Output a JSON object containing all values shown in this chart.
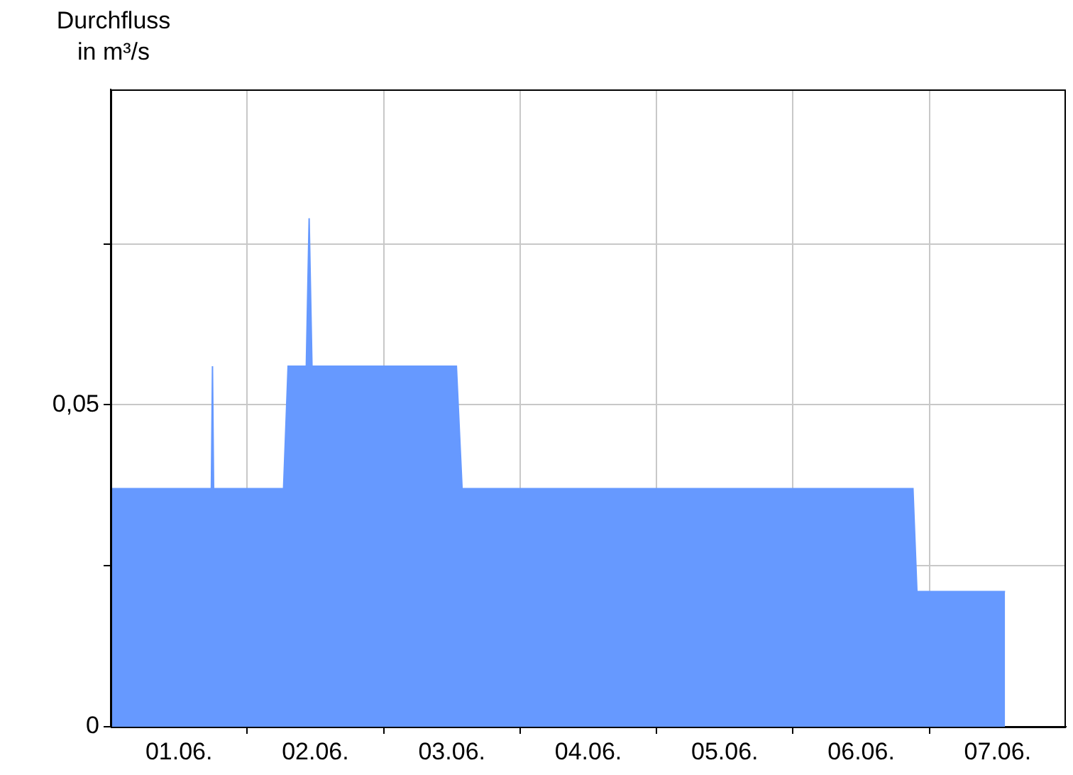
{
  "chart_data": {
    "type": "area",
    "ylabel": "Durchfluss in m³/s",
    "x": [
      "--06-01T00:00",
      "--06-01T17:42",
      "--06-01T17:54",
      "--06-01T18:06",
      "--06-02T06:24",
      "--06-02T07:12",
      "--06-02T10:24",
      "--06-02T10:54",
      "--06-02T11:24",
      "--06-03T12:48",
      "--06-03T13:48",
      "--06-06T21:06",
      "--06-06T21:48",
      "--06-07T13:18"
    ],
    "series": [
      {
        "color": "#6699ff",
        "values": [
          0.037,
          0.037,
          0.056,
          0.037,
          0.037,
          0.056,
          0.056,
          0.079,
          0.056,
          0.056,
          0.037,
          0.037,
          0.021,
          0.021
        ]
      }
    ],
    "xlim": [
      "--06-01",
      "--06-08"
    ],
    "xticks": [
      {
        "value": "--06-01T12:00",
        "label": "01.06."
      },
      {
        "value": "--06-02",
        "label": null
      },
      {
        "value": "--06-02T12:00",
        "label": "02.06."
      },
      {
        "value": "--06-03",
        "label": null
      },
      {
        "value": "--06-03T12:00",
        "label": "03.06."
      },
      {
        "value": "--06-04",
        "label": null
      },
      {
        "value": "--06-04T12:00",
        "label": "04.06."
      },
      {
        "value": "--06-05",
        "label": null
      },
      {
        "value": "--06-05T12:00",
        "label": "05.06."
      },
      {
        "value": "--06-06",
        "label": null
      },
      {
        "value": "--06-06T12:00",
        "label": "06.06."
      },
      {
        "value": "--06-07",
        "label": null
      },
      {
        "value": "--06-07T12:00",
        "label": "07.06."
      }
    ],
    "ylim": [
      0,
      0.099
    ],
    "yticks": [
      {
        "value": 0,
        "label": "0"
      },
      {
        "value": 0.025,
        "label": null
      },
      {
        "value": 0.05,
        "label": "0,05"
      },
      {
        "value": 0.075,
        "label": null
      }
    ],
    "grid": true
  }
}
